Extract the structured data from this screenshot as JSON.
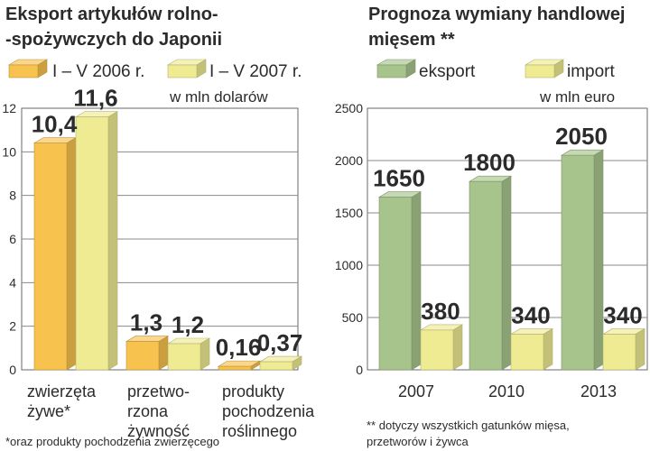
{
  "chart_data": [
    {
      "type": "bar",
      "title_lines": [
        "Eksport artykułów rolno-",
        "-spożywczych do Japonii"
      ],
      "unit": "w mln dolarów",
      "categories": [
        [
          "zwierzęta",
          "żywe*"
        ],
        [
          "przetwo-",
          "rzona",
          "żywność"
        ],
        [
          "produkty",
          "pochodzenia",
          "roślinnego"
        ]
      ],
      "series": [
        {
          "name": "I – V 2006 r.",
          "color": "#f7c24e",
          "values": [
            10.4,
            1.3,
            0.16
          ],
          "labels": [
            "10,4",
            "1,3",
            "0,16"
          ]
        },
        {
          "name": "I – V 2007 r.",
          "color": "#eeeb92",
          "values": [
            11.6,
            1.2,
            0.37
          ],
          "labels": [
            "11,6",
            "1,2",
            "0,37"
          ]
        }
      ],
      "ylim": [
        0,
        12
      ],
      "yticks": [
        "0",
        "2",
        "4",
        "6",
        "8",
        "10",
        "12"
      ],
      "footnote": "*oraz produkty pochodzenia zwierzęcego",
      "grid": true,
      "legend": "top"
    },
    {
      "type": "bar",
      "title_lines": [
        "Prognoza wymiany handlowej",
        "mięsem **"
      ],
      "unit": "w mln euro",
      "categories": [
        "2007",
        "2010",
        "2013"
      ],
      "series": [
        {
          "name": "eksport",
          "color": "#a8c48d",
          "values": [
            1650,
            1800,
            2050
          ],
          "labels": [
            "1650",
            "1800",
            "2050"
          ]
        },
        {
          "name": "import",
          "color": "#eeeb92",
          "values": [
            380,
            340,
            340
          ],
          "labels": [
            "380",
            "340",
            "340"
          ]
        }
      ],
      "ylim": [
        0,
        2500
      ],
      "yticks": [
        "0",
        "500",
        "1000",
        "1500",
        "2000",
        "2500"
      ],
      "footnote_lines": [
        "** dotyczy wszystkich gatunków mięsa,",
        "przetworów i żywca"
      ],
      "grid": true,
      "legend": "top"
    }
  ]
}
